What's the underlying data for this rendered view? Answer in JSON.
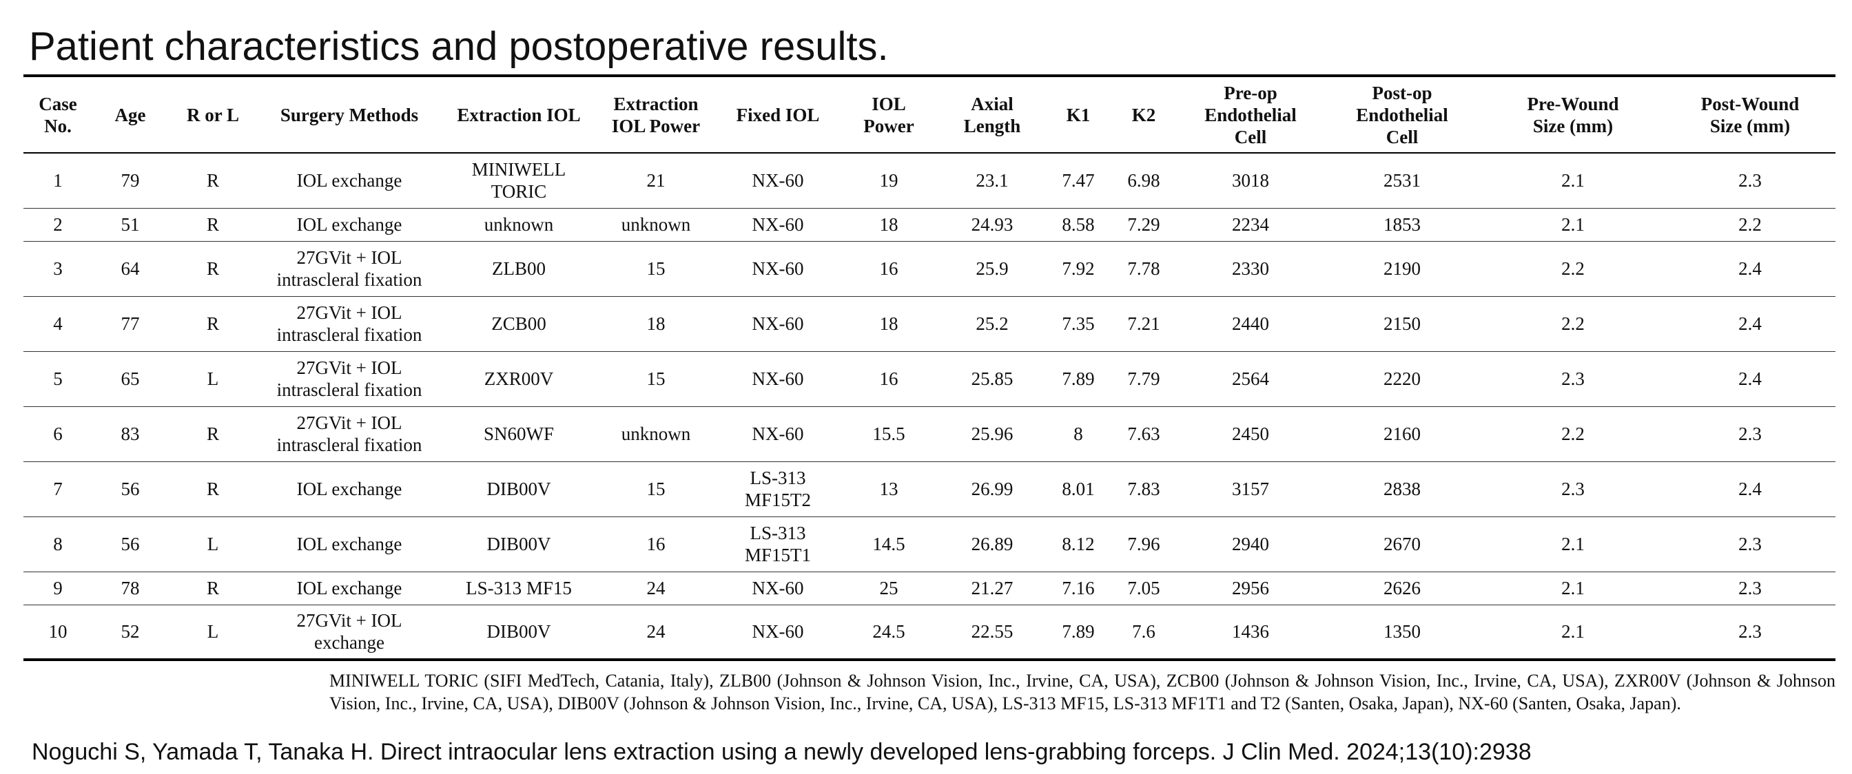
{
  "title": "Patient characteristics and postoperative results.",
  "table": {
    "headers": [
      "Case\nNo.",
      "Age",
      "R or L",
      "Surgery Methods",
      "Extraction IOL",
      "Extraction\nIOL Power",
      "Fixed IOL",
      "IOL\nPower",
      "Axial\nLength",
      "K1",
      "K2",
      "Pre-op\nEndothelial\nCell",
      "Post-op\nEndothelial\nCell",
      "Pre-Wound\nSize (mm)",
      "Post-Wound\nSize (mm)"
    ],
    "rows": [
      [
        "1",
        "79",
        "R",
        "IOL exchange",
        "MINIWELL\nTORIC",
        "21",
        "NX-60",
        "19",
        "23.1",
        "7.47",
        "6.98",
        "3018",
        "2531",
        "2.1",
        "2.3"
      ],
      [
        "2",
        "51",
        "R",
        "IOL exchange",
        "unknown",
        "unknown",
        "NX-60",
        "18",
        "24.93",
        "8.58",
        "7.29",
        "2234",
        "1853",
        "2.1",
        "2.2"
      ],
      [
        "3",
        "64",
        "R",
        "27GVit + IOL\nintrascleral fixation",
        "ZLB00",
        "15",
        "NX-60",
        "16",
        "25.9",
        "7.92",
        "7.78",
        "2330",
        "2190",
        "2.2",
        "2.4"
      ],
      [
        "4",
        "77",
        "R",
        "27GVit + IOL\nintrascleral fixation",
        "ZCB00",
        "18",
        "NX-60",
        "18",
        "25.2",
        "7.35",
        "7.21",
        "2440",
        "2150",
        "2.2",
        "2.4"
      ],
      [
        "5",
        "65",
        "L",
        "27GVit + IOL\nintrascleral fixation",
        "ZXR00V",
        "15",
        "NX-60",
        "16",
        "25.85",
        "7.89",
        "7.79",
        "2564",
        "2220",
        "2.3",
        "2.4"
      ],
      [
        "6",
        "83",
        "R",
        "27GVit + IOL\nintrascleral fixation",
        "SN60WF",
        "unknown",
        "NX-60",
        "15.5",
        "25.96",
        "8",
        "7.63",
        "2450",
        "2160",
        "2.2",
        "2.3"
      ],
      [
        "7",
        "56",
        "R",
        "IOL exchange",
        "DIB00V",
        "15",
        "LS-313\nMF15T2",
        "13",
        "26.99",
        "8.01",
        "7.83",
        "3157",
        "2838",
        "2.3",
        "2.4"
      ],
      [
        "8",
        "56",
        "L",
        "IOL exchange",
        "DIB00V",
        "16",
        "LS-313\nMF15T1",
        "14.5",
        "26.89",
        "8.12",
        "7.96",
        "2940",
        "2670",
        "2.1",
        "2.3"
      ],
      [
        "9",
        "78",
        "R",
        "IOL exchange",
        "LS-313 MF15",
        "24",
        "NX-60",
        "25",
        "21.27",
        "7.16",
        "7.05",
        "2956",
        "2626",
        "2.1",
        "2.3"
      ],
      [
        "10",
        "52",
        "L",
        "27GVit + IOL\nexchange",
        "DIB00V",
        "24",
        "NX-60",
        "24.5",
        "22.55",
        "7.89",
        "7.6",
        "1436",
        "1350",
        "2.1",
        "2.3"
      ]
    ]
  },
  "footnote": "MINIWELL TORIC (SIFI MedTech, Catania, Italy), ZLB00 (Johnson & Johnson Vision, Inc., Irvine, CA, USA), ZCB00 (Johnson & Johnson Vision, Inc., Irvine, CA, USA), ZXR00V (Johnson & Johnson Vision, Inc., Irvine, CA, USA), DIB00V (Johnson & Johnson Vision, Inc., Irvine, CA, USA), LS-313 MF15, LS-313 MF1T1 and T2 (Santen, Osaka, Japan), NX-60 (Santen, Osaka, Japan).",
  "citation": "Noguchi S, Yamada T, Tanaka H. Direct intraocular lens extraction using a newly developed lens-grabbing forceps. J Clin Med. 2024;13(10):2938"
}
